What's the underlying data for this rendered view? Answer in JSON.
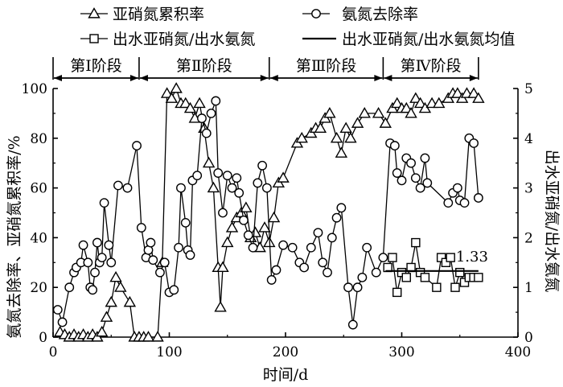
{
  "chart_data": {
    "type": "line",
    "xlabel": "时间/d",
    "ylabel_left": "氨氮去除率、亚硝氮累积率/%",
    "ylabel_right": "出水亚硝氮/出水氨氮",
    "xlim": [
      0,
      400
    ],
    "ylim_left": [
      0,
      100
    ],
    "ylim_right": [
      0,
      5
    ],
    "x_ticks": [
      0,
      100,
      200,
      300,
      400
    ],
    "y_left_ticks": [
      0,
      20,
      40,
      60,
      80,
      100
    ],
    "y_right_ticks": [
      0,
      1,
      2,
      3,
      4,
      5
    ],
    "grid": false,
    "legend_position": "top",
    "phases": [
      {
        "label": "第Ⅰ阶段",
        "start": 0,
        "end": 74
      },
      {
        "label": "第Ⅱ阶段",
        "start": 74,
        "end": 186
      },
      {
        "label": "第Ⅲ阶段",
        "start": 186,
        "end": 284
      },
      {
        "label": "第Ⅳ阶段",
        "start": 284,
        "end": 366
      }
    ],
    "series": [
      {
        "name": "亚硝氮累积率",
        "marker": "triangle",
        "axis": "left",
        "points": [
          [
            6,
            2
          ],
          [
            10,
            1
          ],
          [
            14,
            0
          ],
          [
            18,
            1
          ],
          [
            22,
            0
          ],
          [
            26,
            1
          ],
          [
            30,
            0
          ],
          [
            34,
            1
          ],
          [
            38,
            0
          ],
          [
            42,
            2
          ],
          [
            46,
            8
          ],
          [
            50,
            14
          ],
          [
            54,
            24
          ],
          [
            58,
            20
          ],
          [
            66,
            14
          ],
          [
            70,
            0
          ],
          [
            74,
            0
          ],
          [
            78,
            0
          ],
          [
            82,
            0
          ],
          [
            90,
            0
          ],
          [
            94,
            30
          ],
          [
            98,
            98
          ],
          [
            102,
            96
          ],
          [
            106,
            100
          ],
          [
            110,
            94
          ],
          [
            114,
            94
          ],
          [
            118,
            92
          ],
          [
            122,
            88
          ],
          [
            126,
            94
          ],
          [
            130,
            84
          ],
          [
            134,
            70
          ],
          [
            138,
            60
          ],
          [
            142,
            28
          ],
          [
            144,
            12
          ],
          [
            146,
            28
          ],
          [
            150,
            38
          ],
          [
            154,
            44
          ],
          [
            158,
            48
          ],
          [
            162,
            50
          ],
          [
            166,
            52
          ],
          [
            170,
            40
          ],
          [
            174,
            42
          ],
          [
            178,
            36
          ],
          [
            182,
            44
          ],
          [
            186,
            38
          ],
          [
            190,
            48
          ],
          [
            194,
            62
          ],
          [
            198,
            64
          ],
          [
            210,
            78
          ],
          [
            214,
            80
          ],
          [
            222,
            82
          ],
          [
            226,
            84
          ],
          [
            230,
            84
          ],
          [
            234,
            88
          ],
          [
            238,
            90
          ],
          [
            244,
            80
          ],
          [
            248,
            74
          ],
          [
            252,
            84
          ],
          [
            256,
            80
          ],
          [
            262,
            86
          ],
          [
            268,
            90
          ],
          [
            280,
            90
          ],
          [
            286,
            86
          ],
          [
            292,
            92
          ],
          [
            296,
            94
          ],
          [
            300,
            92
          ],
          [
            304,
            92
          ],
          [
            308,
            90
          ],
          [
            312,
            96
          ],
          [
            316,
            94
          ],
          [
            320,
            92
          ],
          [
            326,
            94
          ],
          [
            332,
            94
          ],
          [
            340,
            96
          ],
          [
            344,
            98
          ],
          [
            348,
            98
          ],
          [
            352,
            96
          ],
          [
            356,
            98
          ],
          [
            362,
            98
          ],
          [
            366,
            96
          ]
        ]
      },
      {
        "name": "氨氮去除率",
        "marker": "circle",
        "axis": "left",
        "points": [
          [
            4,
            11
          ],
          [
            8,
            6
          ],
          [
            14,
            20
          ],
          [
            18,
            26
          ],
          [
            20,
            28
          ],
          [
            24,
            30
          ],
          [
            26,
            37
          ],
          [
            30,
            30
          ],
          [
            32,
            20
          ],
          [
            34,
            19
          ],
          [
            36,
            26
          ],
          [
            38,
            38
          ],
          [
            40,
            30
          ],
          [
            42,
            32
          ],
          [
            44,
            54
          ],
          [
            48,
            37
          ],
          [
            50,
            30
          ],
          [
            56,
            61
          ],
          [
            64,
            60
          ],
          [
            72,
            77
          ],
          [
            76,
            44
          ],
          [
            80,
            32
          ],
          [
            82,
            35
          ],
          [
            84,
            38
          ],
          [
            86,
            31
          ],
          [
            92,
            26
          ],
          [
            96,
            30
          ],
          [
            100,
            18
          ],
          [
            104,
            19
          ],
          [
            108,
            36
          ],
          [
            110,
            60
          ],
          [
            114,
            46
          ],
          [
            116,
            35
          ],
          [
            118,
            33
          ],
          [
            120,
            63
          ],
          [
            124,
            65
          ],
          [
            128,
            88
          ],
          [
            132,
            82
          ],
          [
            136,
            90
          ],
          [
            140,
            95
          ],
          [
            142,
            66
          ],
          [
            146,
            50
          ],
          [
            150,
            65
          ],
          [
            154,
            60
          ],
          [
            158,
            64
          ],
          [
            160,
            58
          ],
          [
            164,
            47
          ],
          [
            168,
            41
          ],
          [
            172,
            36
          ],
          [
            176,
            62
          ],
          [
            180,
            69
          ],
          [
            184,
            60
          ],
          [
            188,
            23
          ],
          [
            192,
            27
          ],
          [
            198,
            37
          ],
          [
            206,
            36
          ],
          [
            212,
            30
          ],
          [
            216,
            28
          ],
          [
            222,
            36
          ],
          [
            228,
            42
          ],
          [
            232,
            30
          ],
          [
            236,
            26
          ],
          [
            240,
            40
          ],
          [
            244,
            48
          ],
          [
            248,
            52
          ],
          [
            254,
            20
          ],
          [
            258,
            5
          ],
          [
            262,
            20
          ],
          [
            266,
            24
          ],
          [
            270,
            36
          ],
          [
            278,
            26
          ],
          [
            284,
            32
          ],
          [
            290,
            78
          ],
          [
            294,
            77
          ],
          [
            296,
            66
          ],
          [
            300,
            63
          ],
          [
            304,
            72
          ],
          [
            308,
            70
          ],
          [
            312,
            64
          ],
          [
            316,
            60
          ],
          [
            320,
            72
          ],
          [
            322,
            62
          ],
          [
            340,
            54
          ],
          [
            344,
            58
          ],
          [
            348,
            60
          ],
          [
            350,
            55
          ],
          [
            354,
            54
          ],
          [
            358,
            80
          ],
          [
            362,
            78
          ],
          [
            366,
            56
          ]
        ]
      },
      {
        "name": "出水亚硝氮/出水氨氮",
        "marker": "square",
        "axis": "right",
        "points": [
          [
            288,
            1.4
          ],
          [
            292,
            1.6
          ],
          [
            296,
            0.9
          ],
          [
            300,
            1.3
          ],
          [
            304,
            1.2
          ],
          [
            308,
            1.4
          ],
          [
            312,
            1.9
          ],
          [
            316,
            1.3
          ],
          [
            320,
            1.2
          ],
          [
            330,
            1.0
          ],
          [
            334,
            1.6
          ],
          [
            338,
            1.5
          ],
          [
            342,
            1.6
          ],
          [
            346,
            1.0
          ],
          [
            350,
            1.3
          ],
          [
            354,
            1.1
          ],
          [
            358,
            1.2
          ],
          [
            362,
            1.2
          ],
          [
            366,
            1.2
          ]
        ]
      }
    ],
    "mean_line": {
      "name": "出水亚硝氮/出水氨氮均值",
      "axis": "right",
      "value": 1.33,
      "x_range": [
        286,
        366
      ],
      "label": "1.33"
    }
  }
}
